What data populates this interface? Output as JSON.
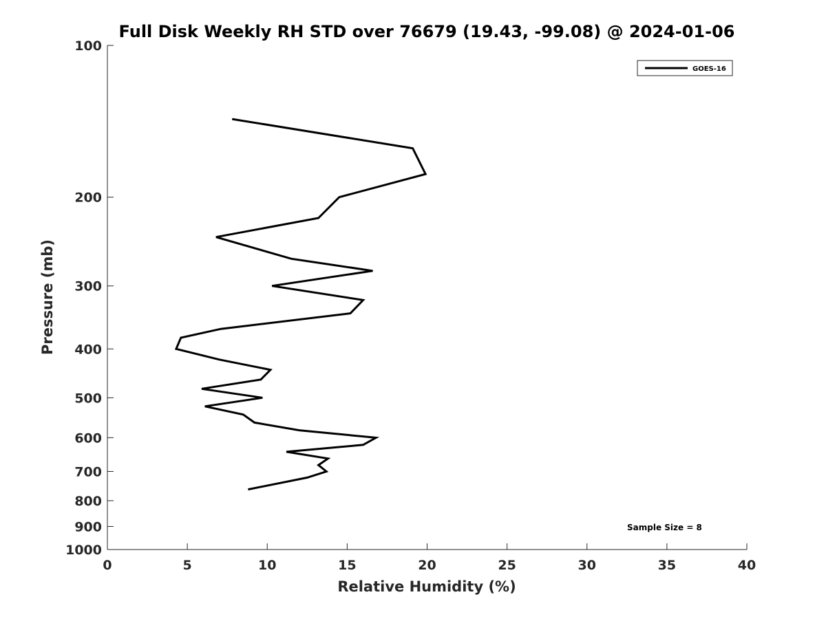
{
  "chart_data": {
    "type": "line",
    "title": "Full Disk Weekly RH STD over 76679 (19.43, -99.08) @ 2024-01-06",
    "xlabel": "Relative Humidity (%)",
    "ylabel": "Pressure (mb)",
    "xlim": [
      0,
      40
    ],
    "ylim": [
      100,
      1000
    ],
    "yscale": "log",
    "y_reversed": true,
    "xticks": [
      0,
      5,
      10,
      15,
      20,
      25,
      30,
      35,
      40
    ],
    "yticks": [
      100,
      200,
      300,
      400,
      500,
      600,
      700,
      800,
      900,
      1000
    ],
    "grid": false,
    "legend_position": "top-right",
    "annotation": "Sample Size = 8",
    "series": [
      {
        "name": "GOES-16",
        "color": "#000000",
        "x": [
          7.8,
          19.1,
          19.9,
          14.5,
          13.2,
          6.8,
          11.5,
          16.6,
          10.3,
          16.0,
          15.2,
          7.1,
          4.6,
          4.3,
          7.0,
          10.2,
          9.6,
          5.9,
          9.7,
          6.1,
          8.5,
          9.2,
          12.0,
          16.8,
          16.0,
          11.2,
          13.8,
          13.2,
          13.7,
          12.5,
          8.8
        ],
        "y": [
          140,
          160,
          180,
          200,
          220,
          240,
          265,
          280,
          300,
          320,
          340,
          365,
          380,
          400,
          420,
          440,
          460,
          480,
          500,
          520,
          540,
          560,
          580,
          600,
          620,
          640,
          660,
          680,
          700,
          720,
          760
        ]
      }
    ]
  }
}
